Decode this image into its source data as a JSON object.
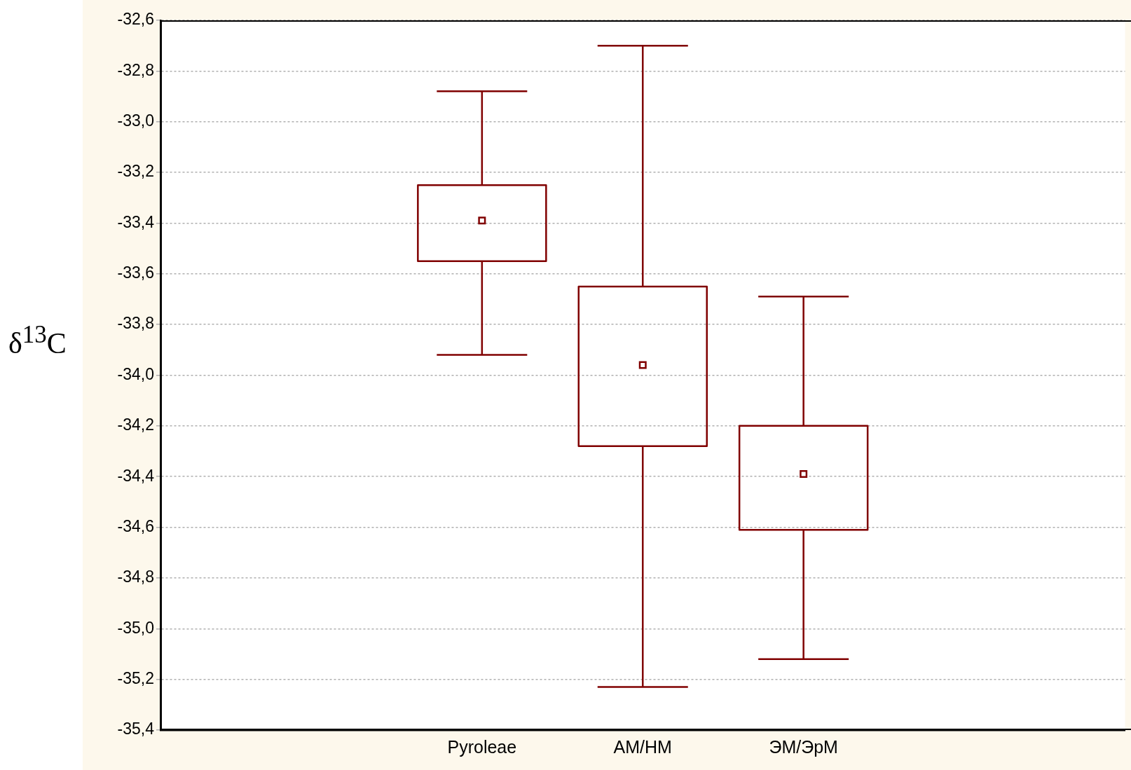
{
  "chart_data": {
    "type": "box",
    "ylabel": "δ$^{13}$C",
    "categories": [
      null,
      "Pyroleae",
      "AM/HM",
      "ЭМ/ЭрМ",
      null
    ],
    "boxes": [
      null,
      {
        "low": -33.92,
        "q1": -33.55,
        "median": -33.39,
        "q3": -33.25,
        "high": -32.88
      },
      {
        "low": -35.23,
        "q1": -34.28,
        "median": -33.96,
        "q3": -33.65,
        "high": -32.7
      },
      {
        "low": -35.12,
        "q1": -34.61,
        "median": -34.39,
        "q3": -34.2,
        "high": -33.69
      },
      null
    ],
    "color": "#800000",
    "ylim": [
      -35.4,
      -32.6
    ],
    "yticks": [
      {
        "value": -35.4,
        "label": "-35,4"
      },
      {
        "value": -35.2,
        "label": "-35,2"
      },
      {
        "value": -35,
        "label": "-35,0"
      },
      {
        "value": -34.8,
        "label": "-34,8"
      },
      {
        "value": -34.6,
        "label": "-34,6"
      },
      {
        "value": -34.4,
        "label": "-34,4"
      },
      {
        "value": -34.2,
        "label": "-34,2"
      },
      {
        "value": -34,
        "label": "-34,0"
      },
      {
        "value": -33.8,
        "label": "-33,8"
      },
      {
        "value": -33.6,
        "label": "-33,6"
      },
      {
        "value": -33.4,
        "label": "-33,4"
      },
      {
        "value": -33.2,
        "label": "-33,2"
      },
      {
        "value": -33,
        "label": "-33,0"
      },
      {
        "value": -32.8,
        "label": "-32,8"
      },
      {
        "value": -32.6,
        "label": "-32,6"
      }
    ],
    "grid": "y",
    "legend": false,
    "marker": "square"
  }
}
